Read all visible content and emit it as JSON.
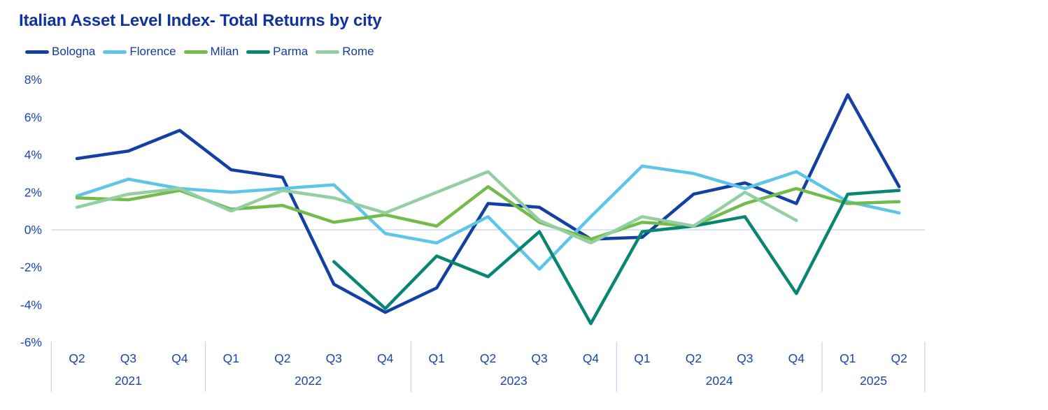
{
  "title": "Italian Asset Level Index- Total Returns by city",
  "colors": {
    "background": "#FFFFFF",
    "title_text": "#10339E",
    "legend_text": "#16399F",
    "axis_text": "#1B46AE",
    "grid_line": "#BDD8EE"
  },
  "chart_data": {
    "type": "line",
    "title": "Italian Asset Level Index- Total Returns by city",
    "unit": "%",
    "legend_position": "top-left",
    "grid": "zero-line-only",
    "ylim": [
      -6.5,
      8.5
    ],
    "y_ticks": [
      8,
      6,
      4,
      2,
      0,
      -2,
      -4,
      -6
    ],
    "y_tick_suffix": "%",
    "categories": [
      "Q2 2021",
      "Q3 2021",
      "Q4 2021",
      "Q1 2022",
      "Q2 2022",
      "Q3 2022",
      "Q4 2022",
      "Q1 2023",
      "Q2 2023",
      "Q3 2023",
      "Q4 2023",
      "Q1 2024",
      "Q2 2024",
      "Q3 2024",
      "Q4 2024",
      "Q1 2025",
      "Q2 2025"
    ],
    "quarter_labels": [
      "Q2",
      "Q3",
      "Q4",
      "Q1",
      "Q2",
      "Q3",
      "Q4",
      "Q1",
      "Q2",
      "Q3",
      "Q4",
      "Q1",
      "Q2",
      "Q3",
      "Q4",
      "Q1",
      "Q2"
    ],
    "year_groups": [
      {
        "label": "2021",
        "quarters": 3
      },
      {
        "label": "2022",
        "quarters": 4
      },
      {
        "label": "2023",
        "quarters": 4
      },
      {
        "label": "2024",
        "quarters": 4
      },
      {
        "label": "2025",
        "quarters": 2
      }
    ],
    "series": [
      {
        "name": "Bologna",
        "color": "#1240A3",
        "values": [
          3.8,
          4.2,
          5.3,
          3.2,
          2.8,
          -2.9,
          -4.4,
          -3.1,
          1.4,
          1.2,
          -0.5,
          -0.4,
          1.9,
          2.5,
          1.4,
          7.2,
          2.3
        ]
      },
      {
        "name": "Florence",
        "color": "#5EC5E8",
        "values": [
          1.8,
          2.7,
          2.2,
          2.0,
          2.2,
          2.4,
          -0.2,
          -0.7,
          0.7,
          -2.1,
          0.7,
          3.4,
          3.0,
          2.2,
          3.1,
          1.5,
          0.9
        ]
      },
      {
        "name": "Milan",
        "color": "#73BC4B",
        "values": [
          1.7,
          1.6,
          2.1,
          1.1,
          1.3,
          0.4,
          0.8,
          0.2,
          2.3,
          0.4,
          -0.5,
          0.4,
          0.2,
          1.4,
          2.2,
          1.4,
          1.5
        ]
      },
      {
        "name": "Parma",
        "color": "#088672",
        "values": [
          null,
          null,
          null,
          null,
          null,
          -1.7,
          -4.2,
          -1.4,
          -2.5,
          -0.1,
          -5.0,
          -0.1,
          0.2,
          0.7,
          -3.4,
          1.9,
          2.1
        ]
      },
      {
        "name": "Rome",
        "color": "#93CFA3",
        "values": [
          1.2,
          1.9,
          2.2,
          1.0,
          2.1,
          1.7,
          0.9,
          2.0,
          3.1,
          0.5,
          -0.7,
          0.7,
          0.2,
          2.0,
          0.5,
          null,
          null
        ]
      }
    ]
  }
}
